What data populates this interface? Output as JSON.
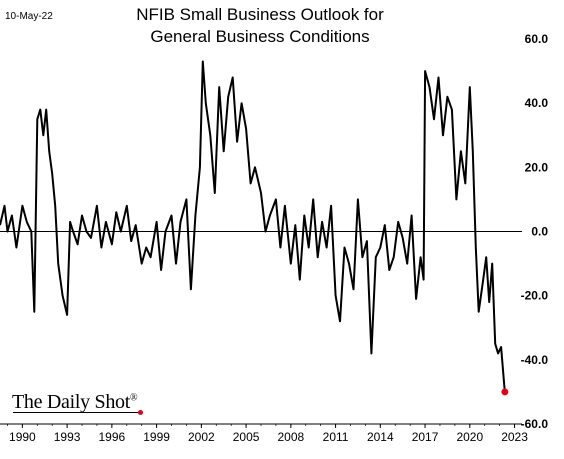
{
  "date_label": "10-May-22",
  "title_line1": "NFIB Small Business Outlook for",
  "title_line2": "General Business Conditions",
  "brand": {
    "name": "The Daily Shot",
    "reg": "®"
  },
  "colors": {
    "line": "#000000",
    "last_point": "#e8000f",
    "zero_line": "#000000"
  },
  "chart_data": {
    "type": "line",
    "title": "NFIB Small Business Outlook for General Business Conditions",
    "xlabel": "",
    "ylabel": "",
    "x_ticks": [
      "1990",
      "1993",
      "1996",
      "1999",
      "2002",
      "2005",
      "2008",
      "2011",
      "2014",
      "2017",
      "2020",
      "2023"
    ],
    "y_ticks": [
      "60.0",
      "40.0",
      "20.0",
      "0.0",
      "-20.0",
      "-40.0",
      "-60.0"
    ],
    "xlim": [
      1988.5,
      2023.5
    ],
    "ylim": [
      -60,
      60
    ],
    "y_axis_side": "right",
    "grid": false,
    "legend": "none",
    "last_point_marker": true,
    "series": [
      {
        "x": [
          1988.5,
          1988.8,
          1989.0,
          1989.3,
          1989.6,
          1990.0,
          1990.3,
          1990.6,
          1990.8,
          1991.0,
          1991.2,
          1991.4,
          1991.6,
          1991.8,
          1992.0,
          1992.2,
          1992.4,
          1992.7,
          1993.0,
          1993.2,
          1993.4,
          1993.7,
          1994.0,
          1994.3,
          1994.6,
          1995.0,
          1995.3,
          1995.6,
          1996.0,
          1996.3,
          1996.6,
          1997.0,
          1997.3,
          1997.6,
          1998.0,
          1998.3,
          1998.6,
          1999.0,
          1999.3,
          1999.6,
          2000.0,
          2000.3,
          2000.6,
          2001.0,
          2001.3,
          2001.6,
          2001.9,
          2002.1,
          2002.3,
          2002.6,
          2002.9,
          2003.2,
          2003.5,
          2003.8,
          2004.1,
          2004.4,
          2004.7,
          2005.0,
          2005.3,
          2005.6,
          2006.0,
          2006.3,
          2006.6,
          2007.0,
          2007.3,
          2007.6,
          2008.0,
          2008.3,
          2008.6,
          2008.9,
          2009.2,
          2009.5,
          2009.8,
          2010.1,
          2010.4,
          2010.7,
          2011.0,
          2011.3,
          2011.6,
          2011.9,
          2012.2,
          2012.5,
          2012.8,
          2013.1,
          2013.4,
          2013.7,
          2014.0,
          2014.3,
          2014.6,
          2014.9,
          2015.2,
          2015.5,
          2015.8,
          2016.1,
          2016.4,
          2016.7,
          2016.9,
          2017.0,
          2017.3,
          2017.6,
          2017.9,
          2018.2,
          2018.5,
          2018.8,
          2019.1,
          2019.4,
          2019.7,
          2020.0,
          2020.2,
          2020.4,
          2020.6,
          2020.9,
          2021.1,
          2021.3,
          2021.5,
          2021.7,
          2021.9,
          2022.1,
          2022.35
        ],
        "y": [
          2,
          8,
          0,
          5,
          -5,
          8,
          3,
          0,
          -25,
          35,
          38,
          30,
          38,
          25,
          18,
          8,
          -10,
          -20,
          -26,
          3,
          0,
          -4,
          5,
          0,
          -2,
          8,
          -5,
          3,
          -4,
          6,
          0,
          8,
          -3,
          2,
          -10,
          -5,
          -8,
          3,
          -12,
          0,
          5,
          -10,
          3,
          10,
          -18,
          5,
          20,
          53,
          40,
          30,
          12,
          45,
          25,
          42,
          48,
          28,
          40,
          32,
          15,
          20,
          12,
          0,
          5,
          10,
          -5,
          8,
          -10,
          2,
          -15,
          5,
          -5,
          10,
          -8,
          3,
          -5,
          8,
          -20,
          -28,
          -5,
          -10,
          -18,
          10,
          -8,
          -3,
          -38,
          -8,
          -5,
          2,
          -12,
          -8,
          3,
          -2,
          -10,
          5,
          -21,
          -8,
          -15,
          50,
          45,
          35,
          48,
          30,
          42,
          38,
          10,
          25,
          15,
          45,
          25,
          -5,
          -25,
          -15,
          -8,
          -22,
          -10,
          -35,
          -38,
          -36,
          -50
        ]
      }
    ]
  }
}
